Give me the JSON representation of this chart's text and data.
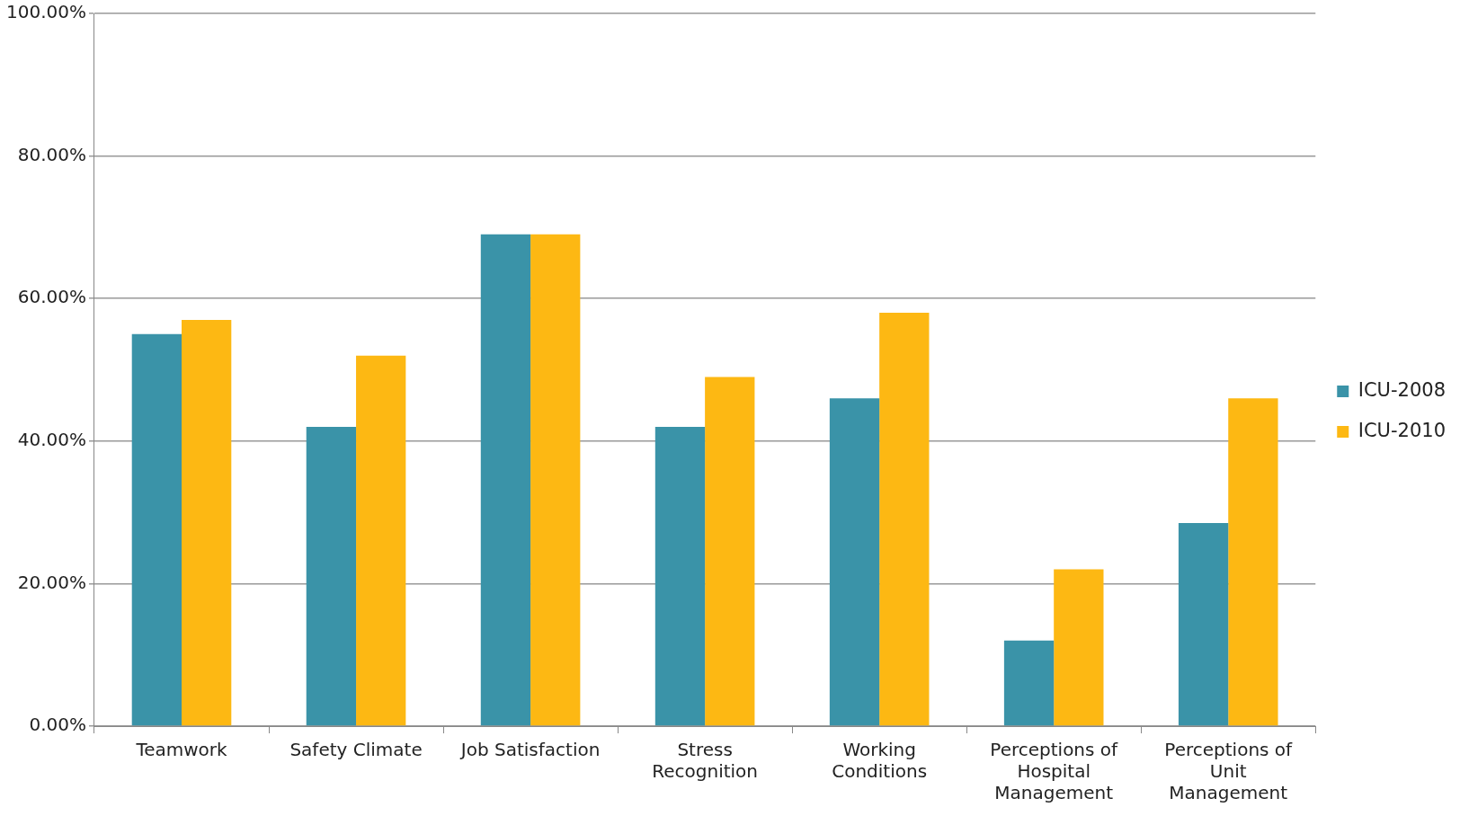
{
  "chart_data": {
    "type": "bar",
    "categories": [
      "Teamwork",
      "Safety Climate",
      "Job Satisfaction",
      "Stress Recognition",
      "Working Conditions",
      "Perceptions of Hospital Management",
      "Perceptions of Unit Management"
    ],
    "series": [
      {
        "name": "ICU-2008",
        "color": "#3a93a8",
        "values": [
          55,
          42,
          69,
          42,
          46,
          12,
          28.5
        ]
      },
      {
        "name": "ICU-2010",
        "color": "#fdb813",
        "values": [
          57,
          52,
          69,
          49,
          58,
          22,
          46
        ]
      }
    ],
    "ylim": [
      0,
      100
    ],
    "yticks": [
      {
        "value": 0,
        "label": "0.00%"
      },
      {
        "value": 20,
        "label": "20.00%"
      },
      {
        "value": 40,
        "label": "40.00%"
      },
      {
        "value": 60,
        "label": "60.00%"
      },
      {
        "value": 80,
        "label": "80.00%"
      },
      {
        "value": 100,
        "label": "100.00%"
      }
    ],
    "grid": "y",
    "legend": "right"
  }
}
